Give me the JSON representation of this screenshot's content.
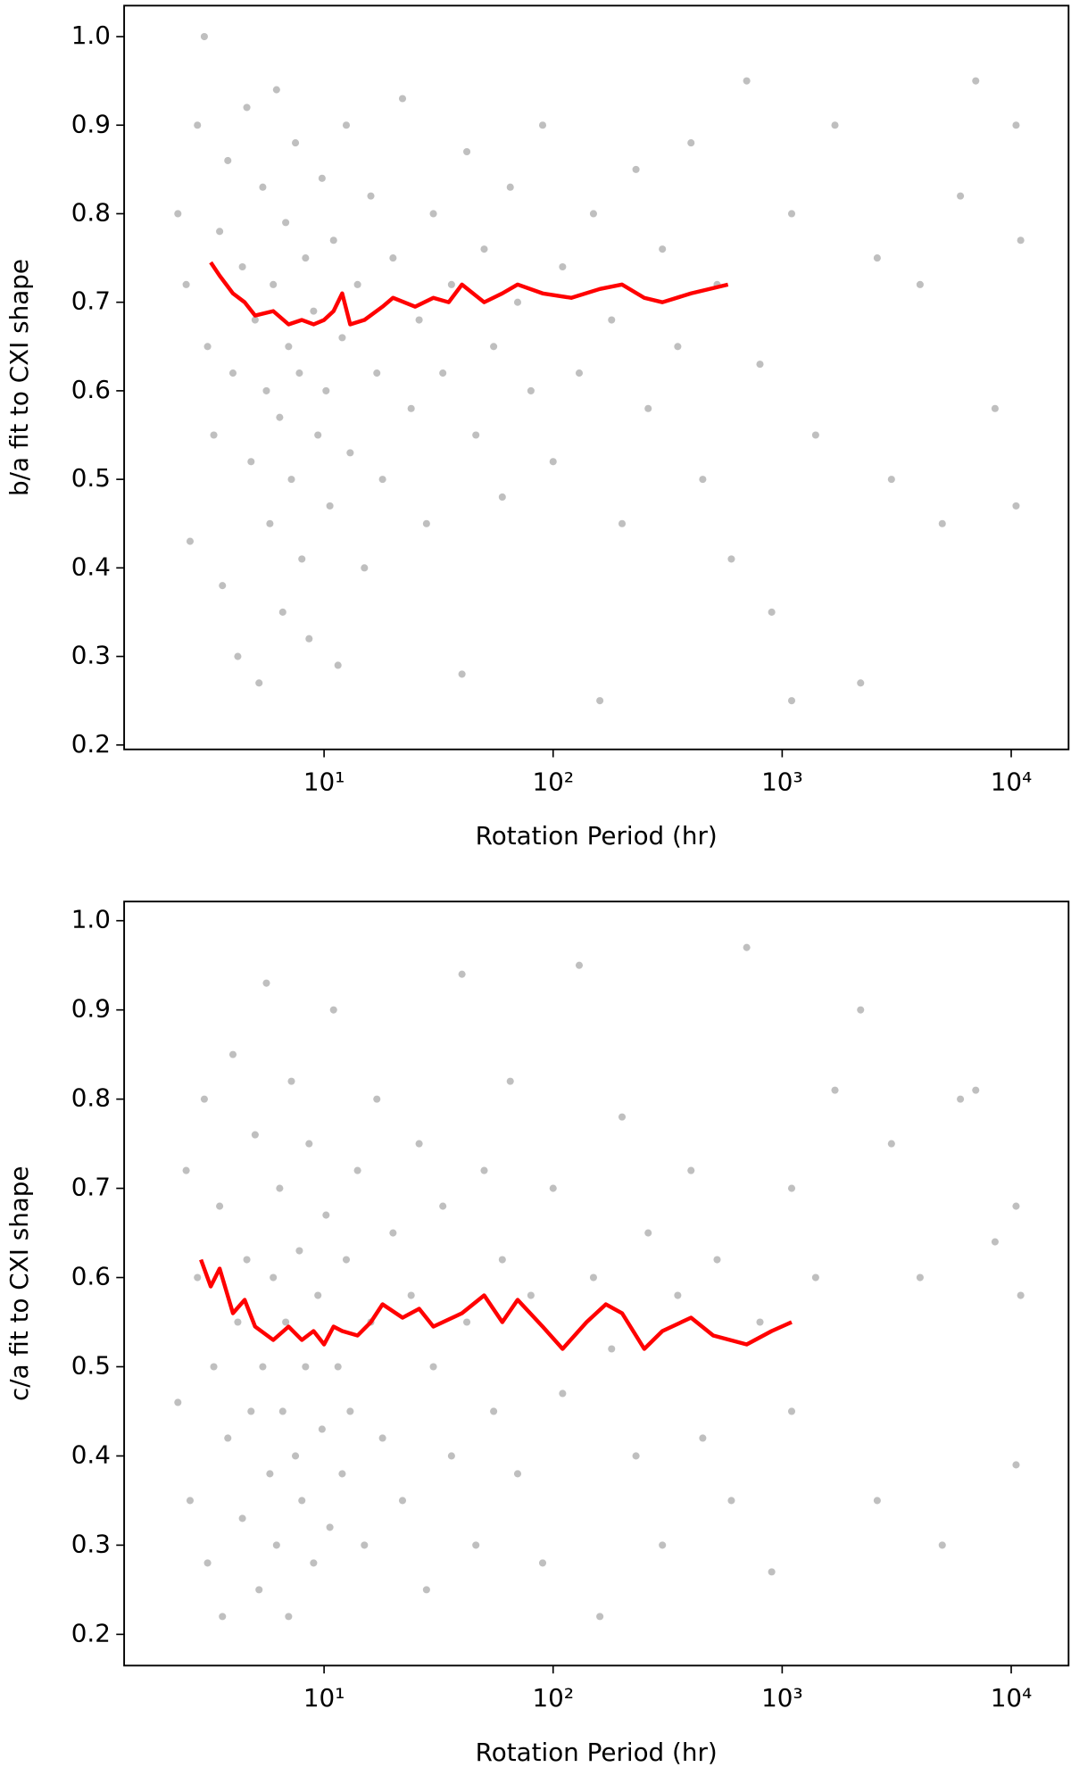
{
  "chart_data": [
    {
      "type": "scatter",
      "xlabel": "Rotation Period (hr)",
      "ylabel": "b/a fit to CXI shape",
      "xscale": "log",
      "xlim": [
        1.34,
        17800
      ],
      "ylim": [
        0.195,
        1.035
      ],
      "xticks": [
        {
          "value": 10,
          "label": "10¹"
        },
        {
          "value": 100,
          "label": "10²"
        },
        {
          "value": 1000,
          "label": "10³"
        },
        {
          "value": 10000,
          "label": "10⁴"
        }
      ],
      "yticks": [
        0.2,
        0.3,
        0.4,
        0.5,
        0.6,
        0.7,
        0.8,
        0.9,
        {
          "value": 1,
          "label": "1.0"
        }
      ],
      "scatter": {
        "color": "#808080",
        "x": [
          2.3,
          2.5,
          2.6,
          2.8,
          3,
          3.1,
          3.3,
          3.5,
          3.6,
          3.8,
          4,
          4.2,
          4.4,
          4.6,
          4.8,
          5,
          5.2,
          5.4,
          5.6,
          5.8,
          6,
          6.2,
          6.4,
          6.6,
          6.8,
          7,
          7.2,
          7.5,
          7.8,
          8,
          8.3,
          8.6,
          9,
          9.4,
          9.8,
          10.2,
          10.6,
          11,
          11.5,
          12,
          12.5,
          13,
          14,
          15,
          16,
          17,
          18,
          20,
          22,
          24,
          26,
          28,
          30,
          33,
          36,
          40,
          42,
          46,
          50,
          55,
          60,
          65,
          70,
          80,
          90,
          100,
          110,
          130,
          150,
          160,
          180,
          200,
          230,
          260,
          300,
          350,
          400,
          450,
          520,
          600,
          700,
          800,
          900,
          1100,
          1100,
          1400,
          1700,
          2200,
          2600,
          3000,
          4000,
          5000,
          6000,
          7000,
          8500,
          10500,
          10500,
          11000
        ],
        "y": [
          0.8,
          0.72,
          0.43,
          0.9,
          1.0,
          0.65,
          0.55,
          0.78,
          0.38,
          0.86,
          0.62,
          0.3,
          0.74,
          0.92,
          0.52,
          0.68,
          0.27,
          0.83,
          0.6,
          0.45,
          0.72,
          0.94,
          0.57,
          0.35,
          0.79,
          0.65,
          0.5,
          0.88,
          0.62,
          0.41,
          0.75,
          0.32,
          0.69,
          0.55,
          0.84,
          0.6,
          0.47,
          0.77,
          0.29,
          0.66,
          0.9,
          0.53,
          0.72,
          0.4,
          0.82,
          0.62,
          0.5,
          0.75,
          0.93,
          0.58,
          0.68,
          0.45,
          0.8,
          0.62,
          0.72,
          0.28,
          0.87,
          0.55,
          0.76,
          0.65,
          0.48,
          0.83,
          0.7,
          0.6,
          0.9,
          0.52,
          0.74,
          0.62,
          0.8,
          0.25,
          0.68,
          0.45,
          0.85,
          0.58,
          0.76,
          0.65,
          0.88,
          0.5,
          0.72,
          0.41,
          0.95,
          0.63,
          0.35,
          0.8,
          0.25,
          0.55,
          0.9,
          0.27,
          0.75,
          0.5,
          0.72,
          0.45,
          0.82,
          0.95,
          0.58,
          0.9,
          0.47,
          0.77
        ]
      },
      "line": {
        "color": "#ff0000",
        "x": [
          3.2,
          3.5,
          4,
          4.5,
          5,
          6,
          7,
          8,
          9,
          10,
          11,
          12,
          13,
          15,
          18,
          20,
          25,
          30,
          35,
          40,
          50,
          60,
          70,
          90,
          120,
          160,
          200,
          250,
          300,
          400,
          580
        ],
        "y": [
          0.745,
          0.73,
          0.71,
          0.7,
          0.685,
          0.69,
          0.675,
          0.68,
          0.675,
          0.68,
          0.69,
          0.71,
          0.675,
          0.68,
          0.695,
          0.705,
          0.695,
          0.705,
          0.7,
          0.72,
          0.7,
          0.71,
          0.72,
          0.71,
          0.705,
          0.715,
          0.72,
          0.705,
          0.7,
          0.71,
          0.72
        ]
      }
    },
    {
      "type": "scatter",
      "xlabel": "Rotation Period (hr)",
      "ylabel": "c/a fit to CXI shape",
      "xscale": "log",
      "xlim": [
        1.34,
        17800
      ],
      "ylim": [
        0.165,
        1.0215
      ],
      "xticks": [
        {
          "value": 10,
          "label": "10¹"
        },
        {
          "value": 100,
          "label": "10²"
        },
        {
          "value": 1000,
          "label": "10³"
        },
        {
          "value": 10000,
          "label": "10⁴"
        }
      ],
      "yticks": [
        0.2,
        0.3,
        0.4,
        0.5,
        0.6,
        0.7,
        0.8,
        0.9,
        {
          "value": 1,
          "label": "1.0"
        }
      ],
      "scatter": {
        "color": "#808080",
        "x": [
          2.3,
          2.5,
          2.6,
          2.8,
          3,
          3.1,
          3.3,
          3.5,
          3.6,
          3.8,
          4,
          4.2,
          4.4,
          4.6,
          4.8,
          5,
          5.2,
          5.4,
          5.6,
          5.8,
          6,
          6.2,
          6.4,
          6.6,
          6.8,
          7,
          7.2,
          7.5,
          7.8,
          8,
          8.3,
          8.6,
          9,
          9.4,
          9.8,
          10.2,
          10.6,
          11,
          11.5,
          12,
          12.5,
          13,
          14,
          15,
          16,
          17,
          18,
          20,
          22,
          24,
          26,
          28,
          30,
          33,
          36,
          40,
          42,
          46,
          50,
          55,
          60,
          65,
          70,
          80,
          90,
          100,
          110,
          130,
          150,
          160,
          180,
          200,
          230,
          260,
          300,
          350,
          400,
          450,
          520,
          600,
          700,
          800,
          900,
          1100,
          1100,
          1400,
          1700,
          2200,
          2600,
          3000,
          4000,
          5000,
          6000,
          7000,
          8500,
          10500,
          10500,
          11000
        ],
        "y": [
          0.46,
          0.72,
          0.35,
          0.6,
          0.8,
          0.28,
          0.5,
          0.68,
          0.22,
          0.42,
          0.85,
          0.55,
          0.33,
          0.62,
          0.45,
          0.76,
          0.25,
          0.5,
          0.93,
          0.38,
          0.6,
          0.3,
          0.7,
          0.45,
          0.55,
          0.22,
          0.82,
          0.4,
          0.63,
          0.35,
          0.5,
          0.75,
          0.28,
          0.58,
          0.43,
          0.67,
          0.32,
          0.9,
          0.5,
          0.38,
          0.62,
          0.45,
          0.72,
          0.3,
          0.55,
          0.8,
          0.42,
          0.65,
          0.35,
          0.58,
          0.75,
          0.25,
          0.5,
          0.68,
          0.4,
          0.94,
          0.55,
          0.3,
          0.72,
          0.45,
          0.62,
          0.82,
          0.38,
          0.58,
          0.28,
          0.7,
          0.47,
          0.95,
          0.6,
          0.22,
          0.52,
          0.78,
          0.4,
          0.65,
          0.3,
          0.58,
          0.72,
          0.42,
          0.62,
          0.35,
          0.97,
          0.55,
          0.27,
          0.7,
          0.45,
          0.6,
          0.81,
          0.9,
          0.35,
          0.75,
          0.6,
          0.3,
          0.8,
          0.81,
          0.64,
          0.68,
          0.39,
          0.58
        ]
      },
      "line": {
        "color": "#ff0000",
        "x": [
          2.9,
          3.2,
          3.5,
          4,
          4.5,
          5,
          6,
          7,
          8,
          9,
          10,
          11,
          12,
          14,
          16,
          18,
          22,
          26,
          30,
          40,
          50,
          60,
          70,
          90,
          110,
          140,
          170,
          200,
          250,
          300,
          400,
          500,
          700,
          900,
          1100
        ],
        "y": [
          0.62,
          0.59,
          0.61,
          0.56,
          0.575,
          0.545,
          0.53,
          0.545,
          0.53,
          0.54,
          0.525,
          0.545,
          0.54,
          0.535,
          0.55,
          0.57,
          0.555,
          0.565,
          0.545,
          0.56,
          0.58,
          0.55,
          0.575,
          0.545,
          0.52,
          0.55,
          0.57,
          0.56,
          0.52,
          0.54,
          0.555,
          0.535,
          0.525,
          0.54,
          0.55
        ]
      }
    }
  ]
}
